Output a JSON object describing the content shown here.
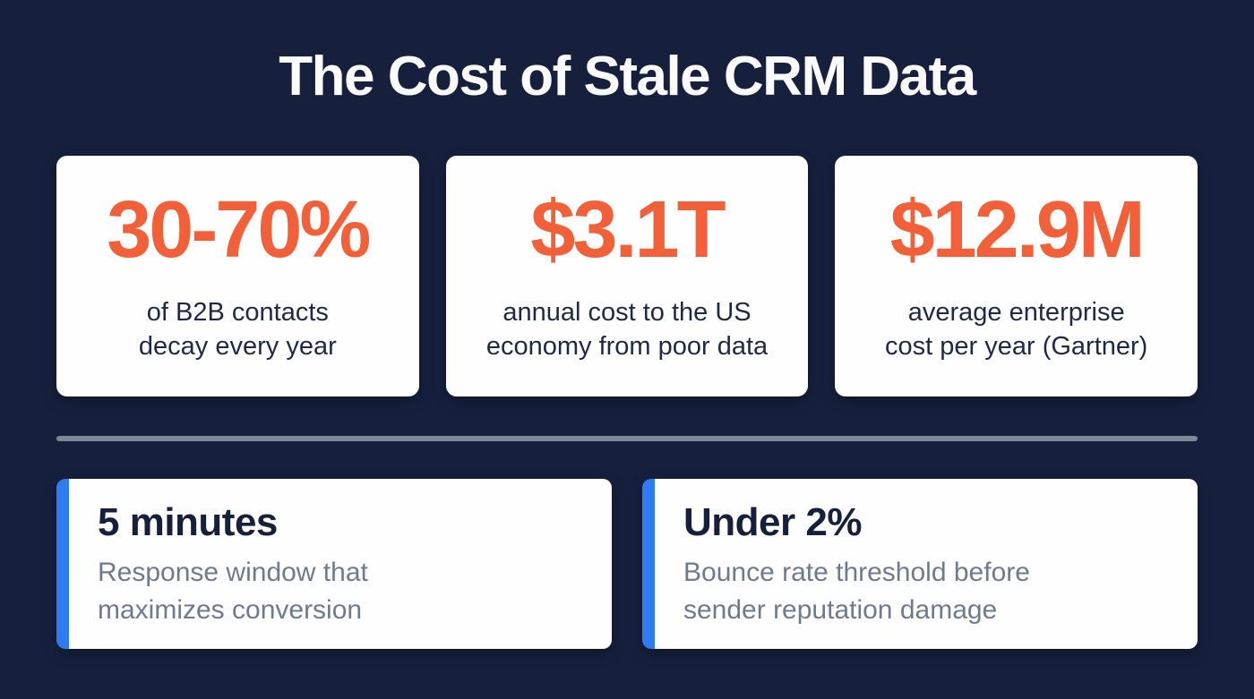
{
  "title": "The Cost of Stale CRM Data",
  "stat_cards": [
    {
      "value": "30-70%",
      "label": "of B2B contacts decay every year",
      "label_lines": [
        "of B2B contacts",
        "decay every year"
      ]
    },
    {
      "value": "$3.1T",
      "label": "annual cost to the US economy from poor data",
      "label_lines": [
        "annual cost to the US",
        "economy from poor data"
      ]
    },
    {
      "value": "$12.9M",
      "label": "average enterprise cost per year (Gartner)",
      "label_lines": [
        "average enterprise",
        "cost per year (Gartner)"
      ]
    }
  ],
  "highlight_cards": [
    {
      "value": "5 minutes",
      "label": "Response window that maximizes conversion",
      "label_lines": [
        "Response window that",
        "maximizes conversion"
      ]
    },
    {
      "value": "Under 2%",
      "label": "Bounce rate threshold before sender reputation damage",
      "label_lines": [
        "Bounce rate threshold before",
        "sender reputation damage"
      ]
    }
  ],
  "colors": {
    "background": "#16203D",
    "card_background": "#FEFEFE",
    "accent_orange": "#F2603A",
    "accent_blue": "#2E7BF2",
    "heading_text": "#FAFAFA",
    "stat_label_text": "#1E2A45",
    "highlight_value_text": "#16203B",
    "highlight_label_text": "#6E7B8F",
    "divider": "#7E8896"
  },
  "chart_data": {
    "type": "table",
    "title": "The Cost of Stale CRM Data",
    "stats": [
      {
        "value": "30-70%",
        "description": "of B2B contacts decay every year"
      },
      {
        "value": "$3.1T",
        "description": "annual cost to the US economy from poor data"
      },
      {
        "value": "$12.9M",
        "description": "average enterprise cost per year (Gartner)"
      },
      {
        "value": "5 minutes",
        "description": "Response window that maximizes conversion"
      },
      {
        "value": "Under 2%",
        "description": "Bounce rate threshold before sender reputation damage"
      }
    ]
  }
}
